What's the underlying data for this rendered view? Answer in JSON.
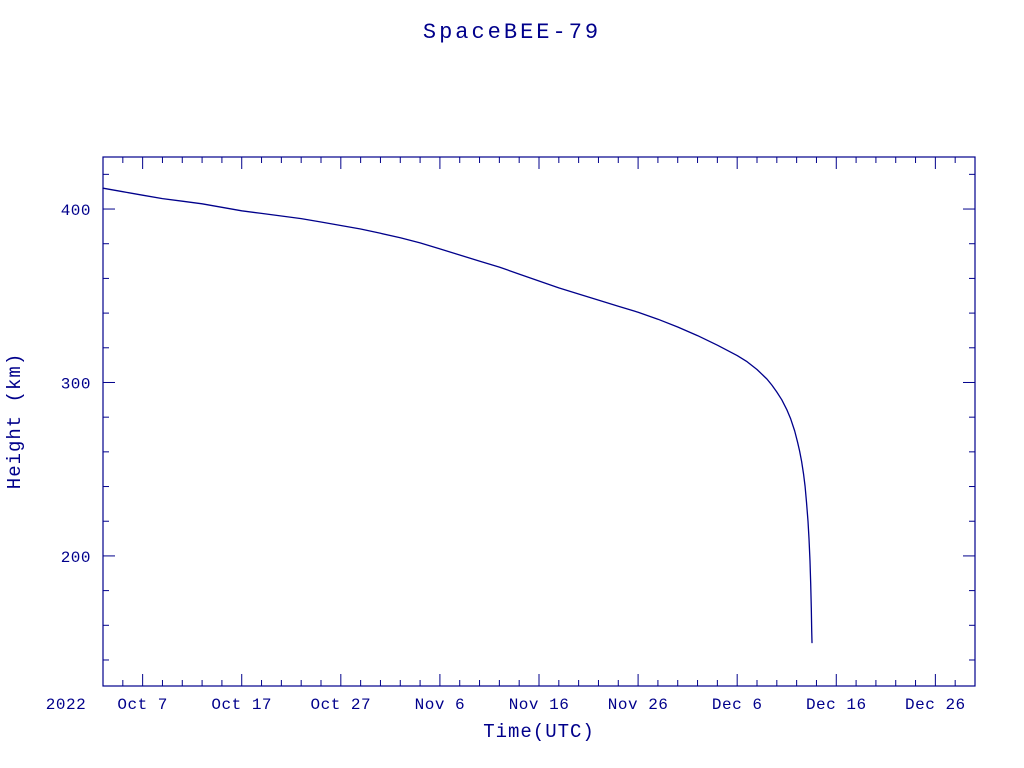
{
  "chart_data": {
    "type": "line",
    "title": "SpaceBEE-79",
    "xlabel": "Time(UTC)",
    "ylabel": "Height (km)",
    "year_label": "2022",
    "x_encoding": "days since 2022 Oct 1 00:00 UTC",
    "xlim": [
      2,
      90
    ],
    "ylim": [
      125,
      430
    ],
    "x_major_ticks": [
      {
        "day": 6,
        "label": "Oct 7"
      },
      {
        "day": 16,
        "label": "Oct 17"
      },
      {
        "day": 26,
        "label": "Oct 27"
      },
      {
        "day": 36,
        "label": "Nov 6"
      },
      {
        "day": 46,
        "label": "Nov 16"
      },
      {
        "day": 56,
        "label": "Nov 26"
      },
      {
        "day": 66,
        "label": "Dec 6"
      },
      {
        "day": 76,
        "label": "Dec 16"
      },
      {
        "day": 86,
        "label": "Dec 26"
      }
    ],
    "x_minor_step": 2,
    "y_major_ticks": [
      200,
      300,
      400
    ],
    "y_minor_step": 20,
    "grid": "off",
    "legend": "none",
    "axis_color": "#00008b",
    "line_color": "#00008b",
    "series": [
      {
        "name": "orbital_height_km",
        "x_days": [
          2,
          4,
          6,
          8,
          10,
          12,
          14,
          16,
          18,
          20,
          22,
          24,
          26,
          28,
          30,
          32,
          34,
          36,
          38,
          40,
          42,
          44,
          46,
          48,
          50,
          52,
          54,
          56,
          58,
          60,
          62,
          64,
          66,
          67,
          68,
          69,
          69.5,
          70,
          70.5,
          71,
          71.4,
          71.8,
          72.1,
          72.3,
          72.5,
          72.7,
          72.85,
          73.0,
          73.15,
          73.25,
          73.35,
          73.42,
          73.48,
          73.52,
          73.55
        ],
        "height_km": [
          412,
          410,
          408,
          406,
          404.5,
          403,
          401,
          399,
          397.5,
          396,
          394.5,
          392.5,
          390.5,
          388.5,
          386,
          383.5,
          380.5,
          377,
          373.5,
          370,
          366.5,
          362.5,
          358.5,
          354.5,
          351,
          347.5,
          344,
          340.5,
          336.5,
          332,
          327,
          321.5,
          315.5,
          312,
          307.5,
          302,
          298.5,
          294.5,
          290,
          284.5,
          279,
          272,
          265.5,
          260.5,
          254.5,
          247,
          240,
          231,
          220,
          210,
          197,
          184,
          170,
          157,
          150
        ]
      }
    ]
  }
}
